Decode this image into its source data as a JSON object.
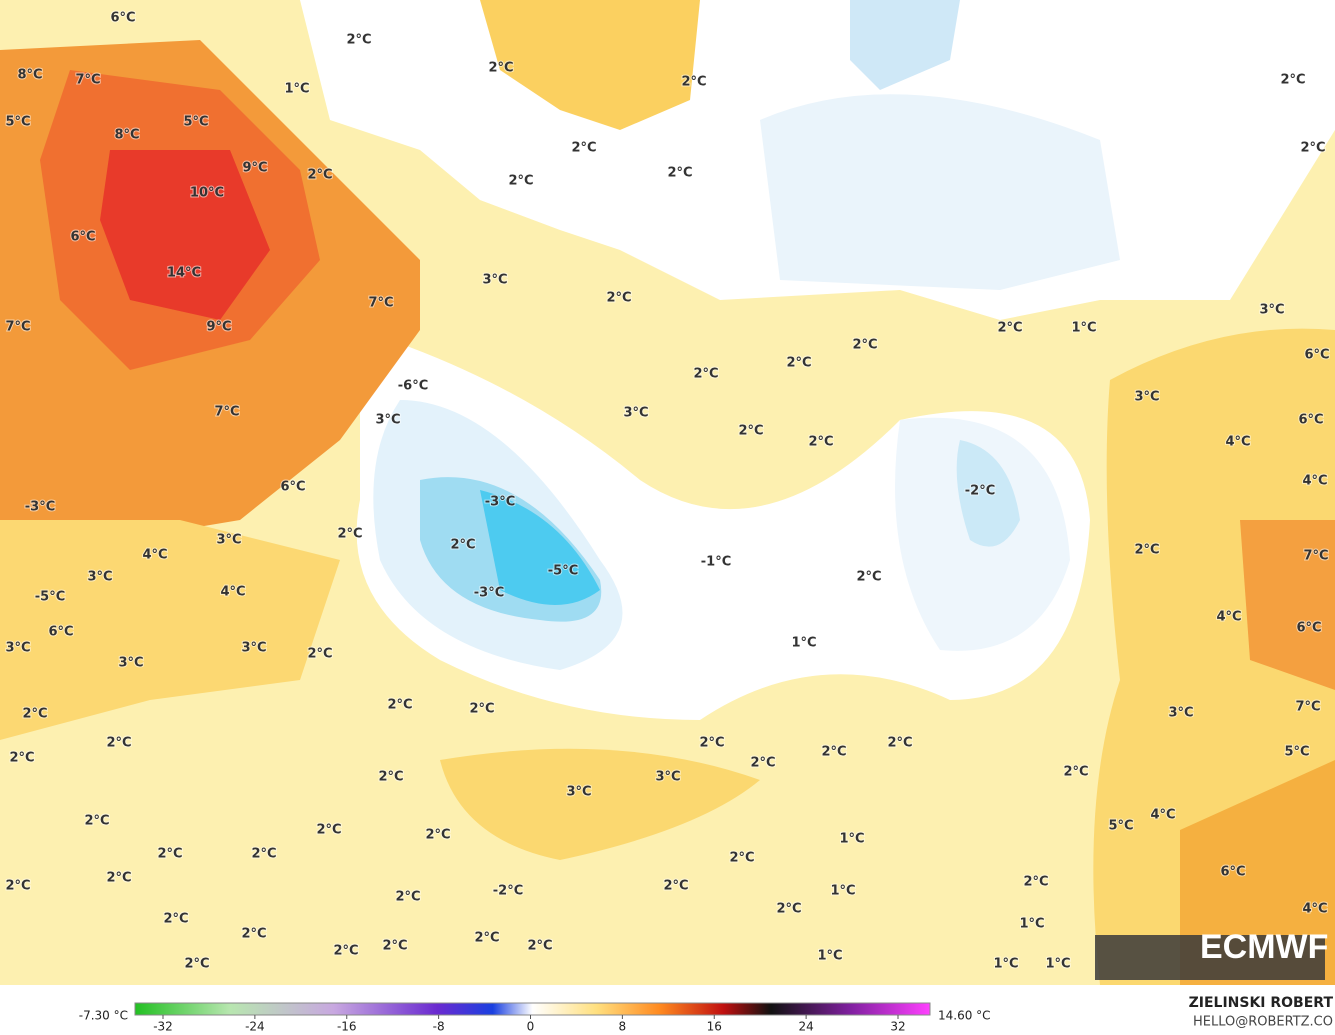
{
  "labels": [
    "6°C",
    "8°C",
    "7°C",
    "5°C",
    "8°C",
    "5°C",
    "10°C",
    "9°C",
    "6°C",
    "14°C",
    "9°C",
    "7°C",
    "7°C",
    "7°C",
    "3°C",
    "-6°C",
    "6°C",
    "-3°C",
    "3°C",
    "4°C",
    "3°C",
    "4°C",
    "-5°C",
    "6°C",
    "3°C",
    "3°C",
    "3°C",
    "2°C",
    "2°C",
    "1°C",
    "2°C",
    "2°C",
    "2°C",
    "2°C",
    "2°C",
    "2°C",
    "3°C",
    "2°C",
    "2°C",
    "2°C",
    "2°C",
    "1°C",
    "2°C",
    "2°C",
    "2°C",
    "3°C",
    "2°C",
    "2°C",
    "3°C",
    "4°C",
    "6°C",
    "4°C",
    "6°C",
    "3°C",
    "-2°C",
    "-3°C",
    "2°C",
    "-5°C",
    "-3°C",
    "-1°C",
    "2°C",
    "2°C",
    "2°C",
    "7°C",
    "4°C",
    "6°C",
    "1°C",
    "7°C",
    "3°C",
    "5°C",
    "2°C",
    "2°C",
    "2°C",
    "2°C",
    "2°C",
    "2°C",
    "2°C",
    "2°C",
    "2°C",
    "2°C",
    "2°C",
    "3°C",
    "3°C",
    "2°C",
    "2°C",
    "2°C",
    "5°C",
    "4°C",
    "1°C",
    "2°C",
    "2°C",
    "2°C",
    "2°C",
    "2°C",
    "2°C",
    "1°C",
    "-2°C",
    "2°C",
    "2°C",
    "6°C",
    "2°C",
    "4°C",
    "2°C",
    "2°C",
    "1°C",
    "2°C",
    "2°C",
    "2°C",
    "2°C",
    "2°C",
    "1°C",
    "1°C",
    "1°C"
  ],
  "colorbar": {
    "min_label": "-7.30 °C",
    "max_label": "14.60 °C",
    "ticks": [
      -32,
      -24,
      -16,
      -8,
      0,
      8,
      16,
      24,
      32
    ]
  },
  "credits": {
    "name": "ZIELINSKI ROBERT",
    "email": "HELLO@ROBERTZ.CO"
  },
  "logo": "ECMWF"
}
